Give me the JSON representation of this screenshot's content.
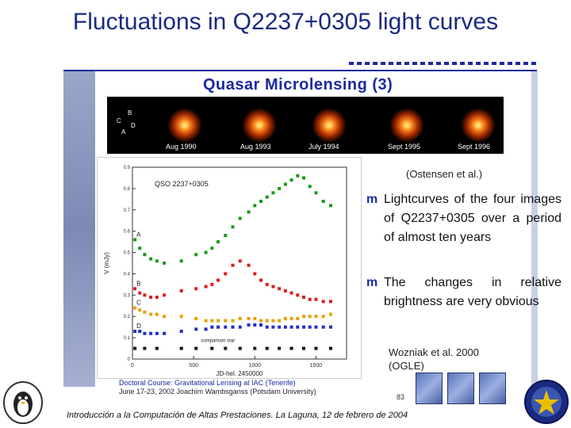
{
  "slide": {
    "title": "Fluctuations in Q2237+0305 light curves",
    "subtitle": "Quasar Microlensing (3)",
    "frames": [
      "Aug 1990",
      "Aug 1993",
      "July 1994",
      "Sept 1995",
      "Sept 1996"
    ],
    "image_letters": [
      "B",
      "C",
      "D",
      "A"
    ],
    "citation_top": "(Ostensen et al.)",
    "bullets": [
      "Lightcurves of the four images of Q2237+0305 over a period of almost ten years",
      "The changes in relative brightness are very obvious"
    ],
    "citation_bottom_line1": "Wozniak et al. 2000",
    "citation_bottom_line2": "(OGLE)",
    "credit_line1": "Doctoral Course: Gravitational Lensing at IAC (Tenerife)",
    "credit_line2": "June 17-23, 2002    Joachim Wambsganss (Potsdam University)",
    "page_number": "83",
    "footer": "Introducción a la Computación de Altas Prestaciones. La Laguna, 12 de febrero de 2004"
  },
  "chart_data": {
    "type": "scatter",
    "title": "QSO 2237+0305",
    "xlabel": "JD-hel. 2450000",
    "ylabel": "V (mJy)",
    "x_ticks": [
      0,
      500,
      1000,
      1500
    ],
    "y_ticks": [
      0,
      0.1,
      0.2,
      0.3,
      0.4,
      0.5,
      0.6,
      0.7,
      0.8,
      0.9
    ],
    "xlim": [
      0,
      1750
    ],
    "ylim": [
      0,
      0.9
    ],
    "annotation": "comparison star",
    "series": [
      {
        "name": "A",
        "color": "#1a9a1a",
        "x": [
          20,
          60,
          100,
          150,
          200,
          260,
          400,
          520,
          600,
          650,
          700,
          760,
          820,
          880,
          950,
          1000,
          1050,
          1100,
          1150,
          1200,
          1250,
          1300,
          1350,
          1400,
          1450,
          1500,
          1560,
          1620
        ],
        "y": [
          0.56,
          0.52,
          0.49,
          0.47,
          0.46,
          0.45,
          0.46,
          0.49,
          0.5,
          0.52,
          0.55,
          0.58,
          0.62,
          0.66,
          0.69,
          0.72,
          0.74,
          0.76,
          0.78,
          0.8,
          0.82,
          0.84,
          0.86,
          0.85,
          0.81,
          0.78,
          0.74,
          0.72
        ]
      },
      {
        "name": "B",
        "color": "#d82020",
        "x": [
          20,
          60,
          100,
          150,
          200,
          260,
          400,
          520,
          600,
          650,
          700,
          760,
          820,
          880,
          950,
          1000,
          1050,
          1100,
          1150,
          1200,
          1250,
          1300,
          1350,
          1400,
          1450,
          1500,
          1560,
          1620
        ],
        "y": [
          0.33,
          0.31,
          0.3,
          0.29,
          0.29,
          0.3,
          0.32,
          0.33,
          0.34,
          0.35,
          0.37,
          0.4,
          0.44,
          0.46,
          0.44,
          0.4,
          0.37,
          0.35,
          0.34,
          0.33,
          0.32,
          0.31,
          0.3,
          0.29,
          0.28,
          0.28,
          0.27,
          0.27
        ]
      },
      {
        "name": "C",
        "color": "#e8a000",
        "x": [
          20,
          60,
          100,
          150,
          200,
          260,
          400,
          520,
          600,
          650,
          700,
          760,
          820,
          880,
          950,
          1000,
          1050,
          1100,
          1150,
          1200,
          1250,
          1300,
          1350,
          1400,
          1450,
          1500,
          1560,
          1620
        ],
        "y": [
          0.24,
          0.23,
          0.22,
          0.21,
          0.21,
          0.2,
          0.2,
          0.19,
          0.18,
          0.18,
          0.18,
          0.18,
          0.18,
          0.19,
          0.19,
          0.19,
          0.18,
          0.18,
          0.18,
          0.18,
          0.19,
          0.19,
          0.19,
          0.2,
          0.2,
          0.2,
          0.2,
          0.21
        ]
      },
      {
        "name": "D",
        "color": "#2030c0",
        "x": [
          20,
          60,
          100,
          150,
          200,
          260,
          400,
          520,
          600,
          650,
          700,
          760,
          820,
          880,
          950,
          1000,
          1050,
          1100,
          1150,
          1200,
          1250,
          1300,
          1350,
          1400,
          1450,
          1500,
          1560,
          1620
        ],
        "y": [
          0.13,
          0.13,
          0.12,
          0.12,
          0.12,
          0.12,
          0.13,
          0.14,
          0.14,
          0.15,
          0.15,
          0.15,
          0.15,
          0.15,
          0.16,
          0.16,
          0.16,
          0.15,
          0.15,
          0.15,
          0.15,
          0.15,
          0.15,
          0.15,
          0.15,
          0.15,
          0.15,
          0.15
        ]
      },
      {
        "name": "comparison star",
        "color": "#111111",
        "x": [
          20,
          100,
          200,
          400,
          520,
          650,
          760,
          880,
          1000,
          1100,
          1200,
          1300,
          1400,
          1500,
          1620
        ],
        "y": [
          0.05,
          0.05,
          0.05,
          0.05,
          0.05,
          0.05,
          0.05,
          0.05,
          0.05,
          0.05,
          0.05,
          0.05,
          0.05,
          0.05,
          0.05
        ]
      }
    ]
  }
}
